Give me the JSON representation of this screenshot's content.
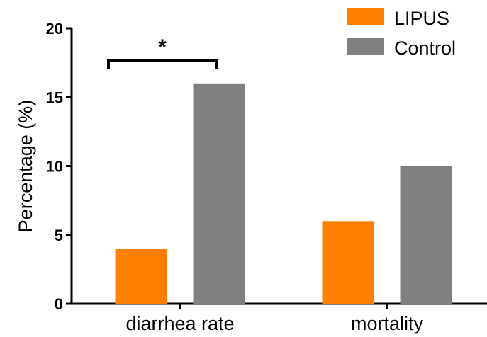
{
  "chart_data": {
    "type": "bar",
    "categories": [
      "diarrhea rate",
      "mortality"
    ],
    "series": [
      {
        "name": "LIPUS",
        "values": [
          4,
          6
        ],
        "color": "#ff8000"
      },
      {
        "name": "Control",
        "values": [
          16,
          10
        ],
        "color": "#808080"
      }
    ],
    "xlabel": "",
    "ylabel": "Percentage (%)",
    "ylim": [
      0,
      20
    ],
    "yticks": [
      0,
      5,
      10,
      15,
      20
    ],
    "grid": false,
    "legend_position": "top-right",
    "annotations": [
      {
        "text": "*",
        "category": "diarrhea rate",
        "type": "significance-bracket"
      }
    ]
  }
}
